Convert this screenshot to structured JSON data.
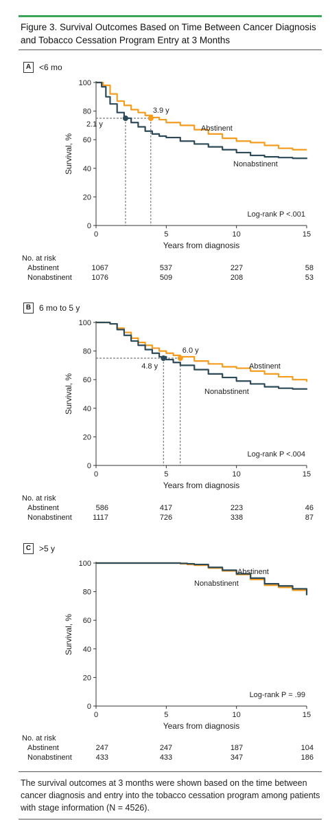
{
  "figure_title": "Figure 3. Survival Outcomes Based on Time Between Cancer Diagnosis and Tobacco Cessation Program Entry at 3 Months",
  "caption": "The survival outcomes at 3 months were shown based on the time between cancer diagnosis and entry into the tobacco cessation program among patients with stage information (N = 4526).",
  "colors": {
    "abstinent": "#f39c1f",
    "nonabstinent": "#2c4a57",
    "accent": "#3aa655"
  },
  "risk_header": "No. at risk",
  "chart_data": [
    {
      "type": "line",
      "panel_letter": "A",
      "panel_title": "<6 mo",
      "xlabel": "Years from diagnosis",
      "ylabel": "Survival, %",
      "xlim": [
        0,
        15
      ],
      "ylim": [
        0,
        100
      ],
      "xticks": [
        0,
        5,
        10,
        15
      ],
      "yticks": [
        0,
        20,
        40,
        60,
        80,
        100
      ],
      "logrank": "Log-rank P <.001",
      "series": [
        {
          "name": "Abstinent",
          "color": "#f39c1f",
          "x": [
            0,
            0.5,
            1,
            1.5,
            2,
            2.5,
            3,
            3.5,
            4,
            4.5,
            5,
            6,
            7,
            8,
            9,
            10,
            11,
            12,
            13,
            14,
            15
          ],
          "y": [
            100,
            98,
            92,
            87,
            84,
            81,
            79,
            77,
            75.5,
            74,
            72,
            70,
            67,
            64,
            61,
            59,
            58,
            56,
            54,
            53,
            53
          ],
          "median_label": "3.9 y",
          "median_x": 3.9,
          "median_y": 75
        },
        {
          "name": "Nonabstinent",
          "color": "#2c4a57",
          "x": [
            0,
            0.4,
            0.7,
            1,
            1.5,
            2,
            2.5,
            3,
            3.5,
            4,
            4.5,
            5,
            6,
            7,
            8,
            9,
            10,
            11,
            12,
            13,
            14,
            15
          ],
          "y": [
            100,
            97,
            90,
            85,
            79,
            75,
            72,
            69,
            66,
            64,
            62.5,
            61.5,
            59,
            57,
            55,
            53,
            51,
            49,
            48,
            47.5,
            47,
            46.5
          ],
          "median_label": "2.1 y",
          "median_x": 2.1,
          "median_y": 75
        }
      ],
      "risk": {
        "times": [
          0,
          5,
          10,
          15
        ],
        "rows": [
          {
            "label": "Abstinent",
            "values": [
              "1067",
              "537",
              "227",
              "58"
            ]
          },
          {
            "label": "Nonabstinent",
            "values": [
              "1076",
              "509",
              "208",
              "53"
            ]
          }
        ]
      }
    },
    {
      "type": "line",
      "panel_letter": "B",
      "panel_title": "6 mo to 5 y",
      "xlabel": "Years from diagnosis",
      "ylabel": "Survival, %",
      "xlim": [
        0,
        15
      ],
      "ylim": [
        0,
        100
      ],
      "xticks": [
        0,
        5,
        10,
        15
      ],
      "yticks": [
        0,
        20,
        40,
        60,
        80,
        100
      ],
      "logrank": "Log-rank P <.004",
      "series": [
        {
          "name": "Abstinent",
          "color": "#f39c1f",
          "x": [
            0,
            1,
            1.5,
            2,
            2.5,
            3,
            3.5,
            4,
            4.5,
            5,
            5.5,
            6,
            7,
            8,
            9,
            10,
            11,
            12,
            13,
            14,
            15
          ],
          "y": [
            100,
            99,
            96,
            93,
            89,
            86,
            84,
            82,
            80,
            78.5,
            77,
            76,
            73,
            71,
            69,
            68,
            66,
            64,
            62,
            60,
            58.5
          ],
          "median_label": "6.0 y",
          "median_x": 6.0,
          "median_y": 75
        },
        {
          "name": "Nonabstinent",
          "color": "#2c4a57",
          "x": [
            0,
            1,
            1.5,
            2,
            2.5,
            3,
            3.5,
            4,
            4.5,
            5,
            5.5,
            6,
            7,
            8,
            9,
            10,
            11,
            12,
            13,
            14,
            15
          ],
          "y": [
            100,
            99,
            95,
            91,
            87,
            84,
            81,
            78.5,
            76,
            74,
            72,
            70,
            67,
            64,
            61.5,
            59,
            57,
            55,
            54,
            53.5,
            53
          ],
          "median_label": "4.8 y",
          "median_x": 4.8,
          "median_y": 75
        }
      ],
      "risk": {
        "times": [
          0,
          5,
          10,
          15
        ],
        "rows": [
          {
            "label": "Abstinent",
            "values": [
              "586",
              "417",
              "223",
              "46"
            ]
          },
          {
            "label": "Nonabstinent",
            "values": [
              "1117",
              "726",
              "338",
              "87"
            ]
          }
        ]
      }
    },
    {
      "type": "line",
      "panel_letter": "C",
      "panel_title": ">5 y",
      "xlabel": "Years from diagnosis",
      "ylabel": "Survival, %",
      "xlim": [
        0,
        15
      ],
      "ylim": [
        0,
        100
      ],
      "xticks": [
        0,
        5,
        10,
        15
      ],
      "yticks": [
        0,
        20,
        40,
        60,
        80,
        100
      ],
      "logrank": "Log-rank P = .99",
      "series": [
        {
          "name": "Abstinent",
          "color": "#f39c1f",
          "x": [
            0,
            5,
            5.6,
            6,
            6.5,
            7,
            8,
            9,
            10,
            11,
            12,
            13,
            14,
            15
          ],
          "y": [
            100,
            100,
            100,
            99.5,
            99,
            98.5,
            96.5,
            94.5,
            92,
            88.5,
            84.5,
            83,
            81,
            78
          ],
          "median_label": "",
          "median_x": null,
          "median_y": null
        },
        {
          "name": "Nonabstinent",
          "color": "#2c4a57",
          "x": [
            0,
            5,
            5.6,
            6,
            6.5,
            7,
            8,
            9,
            10,
            11,
            12,
            13,
            14,
            15
          ],
          "y": [
            100,
            100,
            100,
            99.8,
            99.5,
            99,
            97,
            95,
            92.5,
            89.5,
            85.5,
            84,
            82,
            77.5
          ],
          "median_label": "",
          "median_x": null,
          "median_y": null
        }
      ],
      "risk": {
        "times": [
          0,
          5,
          10,
          15
        ],
        "rows": [
          {
            "label": "Abstinent",
            "values": [
              "247",
              "247",
              "187",
              "104"
            ]
          },
          {
            "label": "Nonabstinent",
            "values": [
              "433",
              "433",
              "347",
              "186"
            ]
          }
        ]
      }
    }
  ]
}
